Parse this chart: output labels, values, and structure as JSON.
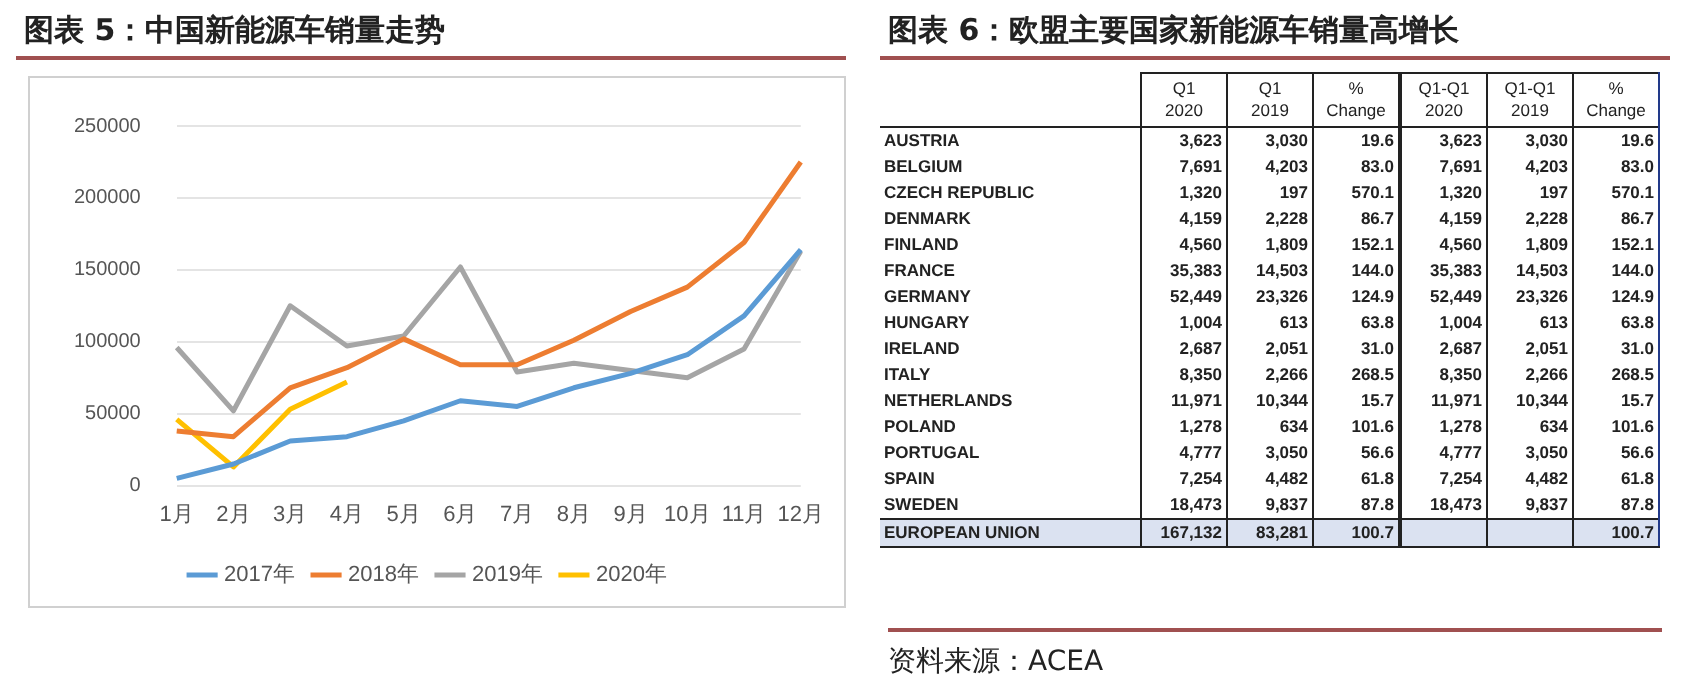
{
  "chart_data": [
    {
      "type": "line",
      "title": "图表 5：中国新能源车销量走势",
      "categories": [
        "1月",
        "2月",
        "3月",
        "4月",
        "5月",
        "6月",
        "7月",
        "8月",
        "9月",
        "10月",
        "11月",
        "12月"
      ],
      "series": [
        {
          "name": "2017年",
          "color": "#5b9bd5",
          "values": [
            5000,
            15000,
            31000,
            34000,
            45000,
            59000,
            55000,
            68000,
            78000,
            91000,
            118000,
            164000
          ]
        },
        {
          "name": "2018年",
          "color": "#ed7d31",
          "values": [
            38000,
            34000,
            68000,
            82000,
            102000,
            84000,
            84000,
            101000,
            121000,
            138000,
            169000,
            225000
          ]
        },
        {
          "name": "2019年",
          "color": "#a5a5a5",
          "values": [
            96000,
            52000,
            125000,
            97000,
            104000,
            152000,
            79000,
            85000,
            80000,
            75000,
            95000,
            163000
          ]
        },
        {
          "name": "2020年",
          "color": "#ffc000",
          "values": [
            46000,
            13000,
            53000,
            72000,
            null,
            null,
            null,
            null,
            null,
            null,
            null,
            null
          ]
        }
      ],
      "ylim": [
        0,
        250000
      ],
      "yticks": [
        0,
        50000,
        100000,
        150000,
        200000,
        250000
      ],
      "grid": "y",
      "legend": "bottom",
      "marker": "none"
    },
    {
      "type": "heatmap",
      "title": "图表 6：欧盟主要国家新能源车销量高增长",
      "categories": [
        "Q1\n2020",
        "Q1\n2019",
        "%\nChange",
        "Q1-Q1\n2020",
        "Q1-Q1\n2019",
        "%\nChange"
      ],
      "y_categories": [
        "AUSTRIA",
        "BELGIUM",
        "CZECH REPUBLIC",
        "DENMARK",
        "FINLAND",
        "FRANCE",
        "GERMANY",
        "HUNGARY",
        "IRELAND",
        "ITALY",
        "NETHERLANDS",
        "POLAND",
        "PORTUGAL",
        "SPAIN",
        "SWEDEN",
        "EUROPEAN UNION"
      ],
      "cells": [
        [
          3623,
          3030,
          19.6,
          3623,
          3030,
          19.6
        ],
        [
          7691,
          4203,
          83.0,
          7691,
          4203,
          83.0
        ],
        [
          1320,
          197,
          570.1,
          1320,
          197,
          570.1
        ],
        [
          4159,
          2228,
          86.7,
          4159,
          2228,
          86.7
        ],
        [
          4560,
          1809,
          152.1,
          4560,
          1809,
          152.1
        ],
        [
          35383,
          14503,
          144.0,
          35383,
          14503,
          144.0
        ],
        [
          52449,
          23326,
          124.9,
          52449,
          23326,
          124.9
        ],
        [
          1004,
          613,
          63.8,
          1004,
          613,
          63.8
        ],
        [
          2687,
          2051,
          31.0,
          2687,
          2051,
          31.0
        ],
        [
          8350,
          2266,
          268.5,
          8350,
          2266,
          268.5
        ],
        [
          11971,
          10344,
          15.7,
          11971,
          10344,
          15.7
        ],
        [
          1278,
          634,
          101.6,
          1278,
          634,
          101.6
        ],
        [
          4777,
          3050,
          56.6,
          4777,
          3050,
          56.6
        ],
        [
          7254,
          4482,
          61.8,
          7254,
          4482,
          61.8
        ],
        [
          18473,
          9837,
          87.8,
          18473,
          9837,
          87.8
        ],
        [
          167132,
          83281,
          100.7,
          null,
          null,
          100.7
        ]
      ],
      "cell_labels": [
        [
          "3,623",
          "3,030",
          "19.6",
          "3,623",
          "3,030",
          "19.6"
        ],
        [
          "7,691",
          "4,203",
          "83.0",
          "7,691",
          "4,203",
          "83.0"
        ],
        [
          "1,320",
          "197",
          "570.1",
          "1,320",
          "197",
          "570.1"
        ],
        [
          "4,159",
          "2,228",
          "86.7",
          "4,159",
          "2,228",
          "86.7"
        ],
        [
          "4,560",
          "1,809",
          "152.1",
          "4,560",
          "1,809",
          "152.1"
        ],
        [
          "35,383",
          "14,503",
          "144.0",
          "35,383",
          "14,503",
          "144.0"
        ],
        [
          "52,449",
          "23,326",
          "124.9",
          "52,449",
          "23,326",
          "124.9"
        ],
        [
          "1,004",
          "613",
          "63.8",
          "1,004",
          "613",
          "63.8"
        ],
        [
          "2,687",
          "2,051",
          "31.0",
          "2,687",
          "2,051",
          "31.0"
        ],
        [
          "8,350",
          "2,266",
          "268.5",
          "8,350",
          "2,266",
          "268.5"
        ],
        [
          "11,971",
          "10,344",
          "15.7",
          "11,971",
          "10,344",
          "15.7"
        ],
        [
          "1,278",
          "634",
          "101.6",
          "1,278",
          "634",
          "101.6"
        ],
        [
          "4,777",
          "3,050",
          "56.6",
          "4,777",
          "3,050",
          "56.6"
        ],
        [
          "7,254",
          "4,482",
          "61.8",
          "7,254",
          "4,482",
          "61.8"
        ],
        [
          "18,473",
          "9,837",
          "87.8",
          "18,473",
          "9,837",
          "87.8"
        ],
        [
          "167,132",
          "83,281",
          "100.7",
          null,
          null,
          "100.7"
        ]
      ],
      "annotations": [
        "资料来源：ACEA"
      ]
    }
  ]
}
